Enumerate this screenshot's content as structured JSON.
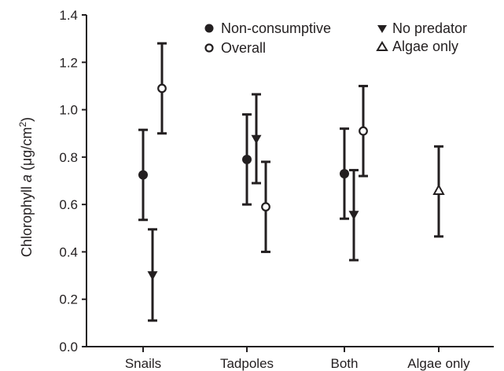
{
  "chart_data": {
    "type": "scatter",
    "ylabel": "Chlorophyll a (μg/cm²)",
    "ylabel_parts": {
      "prefix": "Chlorophyll ",
      "italic": "a",
      "suffix": " (μg/cm",
      "sup": "2",
      "close": ")"
    },
    "ylim": [
      0.0,
      1.4
    ],
    "yticks": [
      "0.0",
      "0.2",
      "0.4",
      "0.6",
      "0.8",
      "1.0",
      "1.2",
      "1.4"
    ],
    "categories": [
      "Snails",
      "Tadpoles",
      "Both",
      "Algae only"
    ],
    "legend_position": "top-right",
    "series": [
      {
        "name": "Non-consumptive",
        "marker": "filled-circle",
        "points": [
          {
            "category": "Snails",
            "y": 0.725,
            "low": 0.535,
            "high": 0.915
          },
          {
            "category": "Tadpoles",
            "y": 0.79,
            "low": 0.6,
            "high": 0.98
          },
          {
            "category": "Both",
            "y": 0.73,
            "low": 0.54,
            "high": 0.92
          }
        ]
      },
      {
        "name": "No predator",
        "marker": "filled-triangle-down",
        "points": [
          {
            "category": "Snails",
            "y": 0.3,
            "low": 0.11,
            "high": 0.495
          },
          {
            "category": "Tadpoles",
            "y": 0.875,
            "low": 0.69,
            "high": 1.065
          },
          {
            "category": "Both",
            "y": 0.555,
            "low": 0.365,
            "high": 0.745
          }
        ]
      },
      {
        "name": "Overall",
        "marker": "open-circle",
        "points": [
          {
            "category": "Snails",
            "y": 1.09,
            "low": 0.9,
            "high": 1.28
          },
          {
            "category": "Tadpoles",
            "y": 0.59,
            "low": 0.4,
            "high": 0.78
          },
          {
            "category": "Both",
            "y": 0.91,
            "low": 0.72,
            "high": 1.1
          }
        ]
      },
      {
        "name": "Algae only",
        "marker": "open-triangle-up",
        "points": [
          {
            "category": "Algae only",
            "y": 0.66,
            "low": 0.465,
            "high": 0.845
          }
        ]
      }
    ],
    "colors": {
      "ink": "#231f20",
      "background": "#ffffff"
    }
  }
}
